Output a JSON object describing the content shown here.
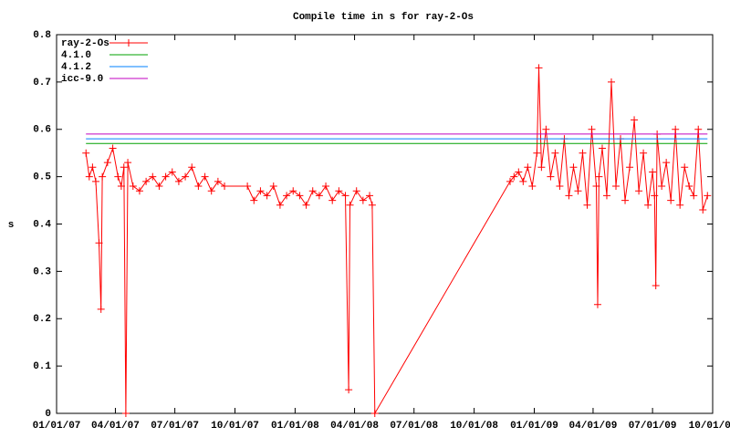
{
  "chart_data": {
    "type": "line",
    "title": "Compile time in s for ray-2-Os",
    "y_label": "s",
    "xlim": [
      "01/01/07",
      "10/01/09"
    ],
    "xticks": [
      "01/01/07",
      "04/01/07",
      "07/01/07",
      "10/01/07",
      "01/01/08",
      "04/01/08",
      "07/01/08",
      "10/01/08",
      "01/01/09",
      "04/01/09",
      "07/01/09",
      "10/01/09"
    ],
    "ylim": [
      0,
      0.8
    ],
    "yticks": [
      0,
      0.1,
      0.2,
      0.3,
      0.4,
      0.5,
      0.6,
      0.7,
      0.8
    ],
    "legend": "top-left",
    "series": [
      {
        "name": "ray-2-Os",
        "color": "#ff0000",
        "markers": true,
        "x": [
          "02/15/07",
          "02/20/07",
          "02/25/07",
          "03/02/07",
          "03/07/07",
          "03/10/07",
          "03/12/07",
          "03/20/07",
          "03/28/07",
          "04/05/07",
          "04/10/07",
          "04/14/07",
          "04/17/07",
          "04/20/07",
          "04/28/07",
          "05/08/07",
          "05/18/07",
          "05/28/07",
          "06/07/07",
          "06/17/07",
          "06/27/07",
          "07/07/07",
          "07/17/07",
          "07/27/07",
          "08/06/07",
          "08/16/07",
          "08/26/07",
          "09/05/07",
          "09/15/07",
          "10/20/07",
          "10/30/07",
          "11/09/07",
          "11/19/07",
          "11/29/07",
          "12/09/07",
          "12/19/07",
          "12/29/07",
          "01/08/08",
          "01/18/08",
          "01/28/08",
          "02/07/08",
          "02/17/08",
          "02/27/08",
          "03/08/08",
          "03/18/08",
          "03/23/08",
          "03/25/08",
          "04/04/08",
          "04/14/08",
          "04/24/08",
          "04/28/08",
          "05/02/08",
          "11/25/08",
          "12/01/08",
          "12/08/08",
          "12/15/08",
          "12/22/08",
          "12/29/08",
          "01/05/09",
          "01/08/09",
          "01/12/09",
          "01/19/09",
          "01/26/09",
          "02/02/09",
          "02/09/09",
          "02/16/09",
          "02/23/09",
          "03/02/09",
          "03/09/09",
          "03/16/09",
          "03/23/09",
          "03/30/09",
          "04/06/09",
          "04/08/09",
          "04/10/09",
          "04/15/09",
          "04/22/09",
          "04/29/09",
          "05/06/09",
          "05/13/09",
          "05/20/09",
          "05/27/09",
          "06/03/09",
          "06/10/09",
          "06/17/09",
          "06/24/09",
          "07/01/09",
          "07/04/09",
          "07/06/09",
          "07/08/09",
          "07/15/09",
          "07/22/09",
          "07/29/09",
          "08/05/09",
          "08/12/09",
          "08/19/09",
          "08/26/09",
          "09/02/09",
          "09/09/09",
          "09/16/09",
          "09/23/09"
        ],
        "values": [
          0.55,
          0.5,
          0.52,
          0.49,
          0.36,
          0.22,
          0.5,
          0.53,
          0.56,
          0.5,
          0.48,
          0.52,
          0.0,
          0.53,
          0.48,
          0.47,
          0.49,
          0.5,
          0.48,
          0.5,
          0.51,
          0.49,
          0.5,
          0.52,
          0.48,
          0.5,
          0.47,
          0.49,
          0.48,
          0.48,
          0.45,
          0.47,
          0.46,
          0.48,
          0.44,
          0.46,
          0.47,
          0.46,
          0.44,
          0.47,
          0.46,
          0.48,
          0.45,
          0.47,
          0.46,
          0.05,
          0.44,
          0.47,
          0.45,
          0.46,
          0.44,
          0.0,
          0.49,
          0.5,
          0.51,
          0.49,
          0.52,
          0.48,
          0.55,
          0.73,
          0.52,
          0.6,
          0.5,
          0.55,
          0.48,
          0.58,
          0.46,
          0.52,
          0.47,
          0.55,
          0.44,
          0.6,
          0.48,
          0.23,
          0.5,
          0.56,
          0.46,
          0.7,
          0.48,
          0.58,
          0.45,
          0.52,
          0.62,
          0.47,
          0.55,
          0.44,
          0.51,
          0.46,
          0.27,
          0.59,
          0.48,
          0.53,
          0.45,
          0.6,
          0.44,
          0.52,
          0.48,
          0.46,
          0.6,
          0.43,
          0.46
        ]
      },
      {
        "name": "4.1.0",
        "color": "#00a000",
        "markers": false,
        "x": [
          "02/15/07",
          "09/23/09"
        ],
        "values": [
          0.57,
          0.57
        ]
      },
      {
        "name": "4.1.2",
        "color": "#0080ff",
        "markers": false,
        "x": [
          "02/15/07",
          "09/23/09"
        ],
        "values": [
          0.58,
          0.58
        ]
      },
      {
        "name": "icc-9.0",
        "color": "#c000c0",
        "markers": false,
        "x": [
          "02/15/07",
          "09/23/09"
        ],
        "values": [
          0.59,
          0.59
        ]
      }
    ]
  }
}
